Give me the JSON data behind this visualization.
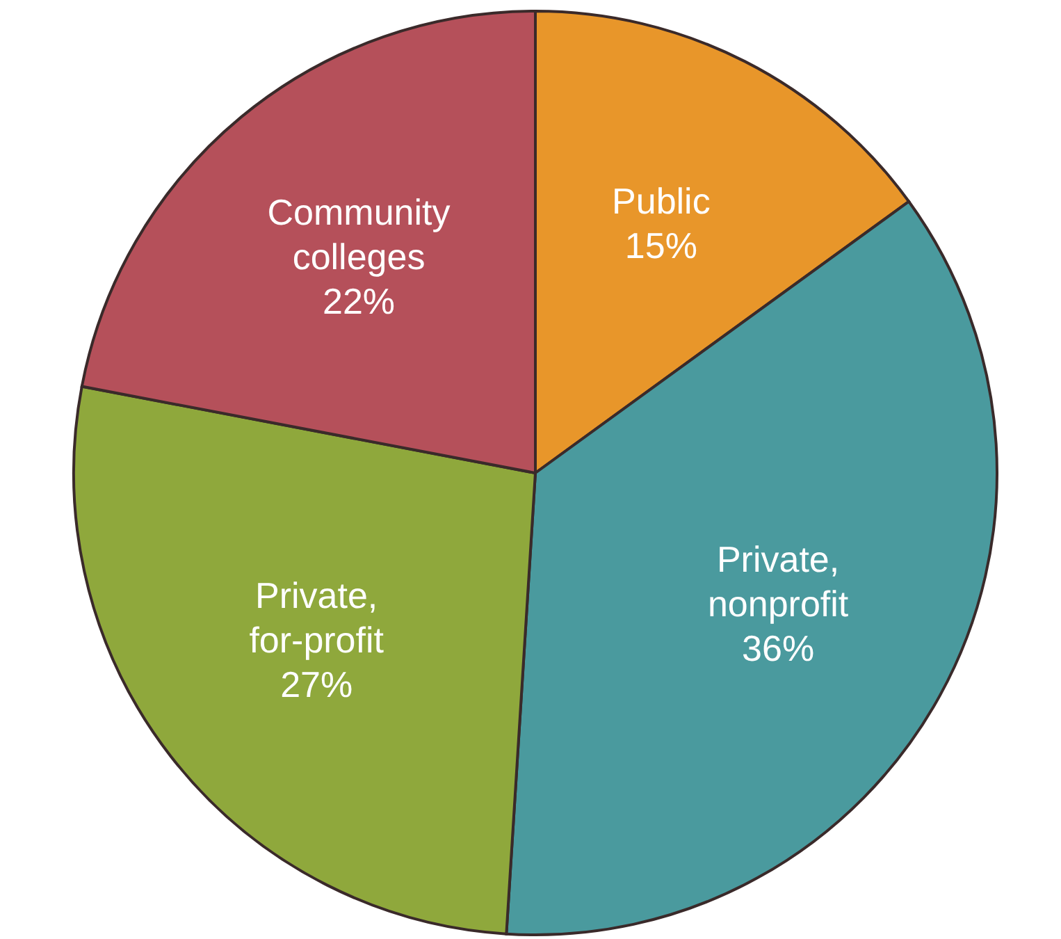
{
  "chart_data": {
    "type": "pie",
    "categories": [
      "Public",
      "Private, nonprofit",
      "Private, for-profit",
      "Community colleges"
    ],
    "values": [
      15,
      36,
      27,
      22
    ],
    "colors": [
      "#e8962a",
      "#4a9a9e",
      "#8fa83c",
      "#b5505a"
    ],
    "value_labels": [
      "15%",
      "36%",
      "27%",
      "22%"
    ]
  }
}
